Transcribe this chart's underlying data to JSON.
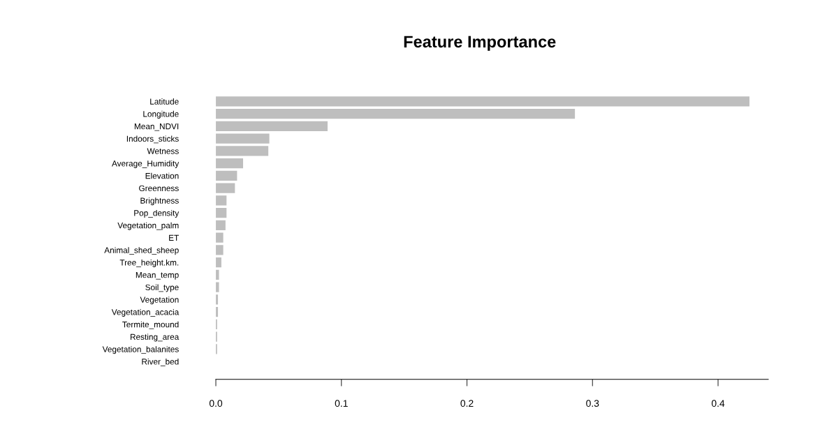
{
  "chart_data": {
    "type": "bar",
    "orientation": "horizontal",
    "title": "Feature Importance",
    "categories": [
      "Latitude",
      "Longitude",
      "Mean_NDVI",
      "Indoors_sticks",
      "Wetness",
      "Average_Humidity",
      "Elevation",
      "Greenness",
      "Brightness",
      "Pop_density",
      "Vegetation_palm",
      "ET",
      "Animal_shed_sheep",
      "Tree_height.km.",
      "Mean_temp",
      "Soil_type",
      "Vegetation",
      "Vegetation_acacia",
      "Termite_mound",
      "Resting_area",
      "Vegetation_balanites",
      "River_bed"
    ],
    "values": [
      0.425,
      0.286,
      0.089,
      0.0426,
      0.0418,
      0.0217,
      0.0169,
      0.0152,
      0.0085,
      0.0085,
      0.0077,
      0.0059,
      0.0059,
      0.0044,
      0.0025,
      0.0025,
      0.0017,
      0.0017,
      0.001,
      0.001,
      0.001,
      0
    ],
    "color": "#bebebe",
    "xlim": [
      0,
      0.44
    ],
    "xticks": [
      {
        "value": 0,
        "label": "0.0"
      },
      {
        "value": 0.1,
        "label": "0.1"
      },
      {
        "value": 0.2,
        "label": "0.2"
      },
      {
        "value": 0.3,
        "label": "0.3"
      },
      {
        "value": 0.4,
        "label": "0.4"
      }
    ],
    "grid": false,
    "legend": false
  }
}
